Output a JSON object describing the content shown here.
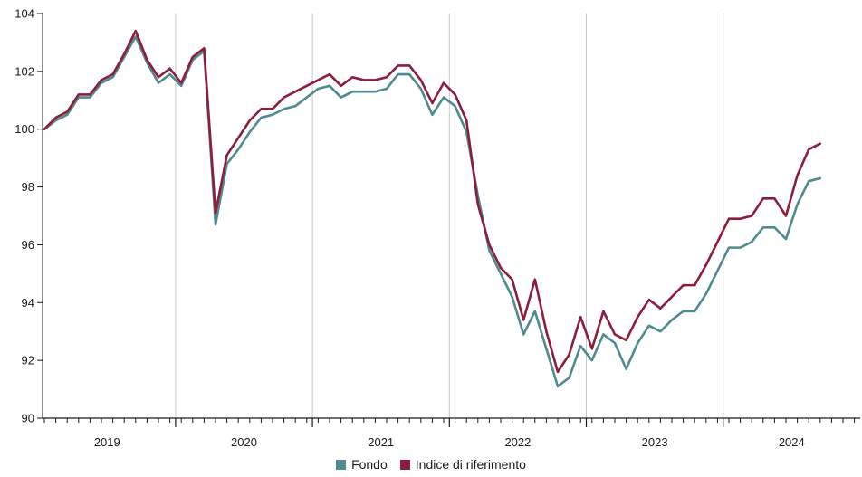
{
  "chart_data": {
    "type": "line",
    "ylim": [
      90,
      104
    ],
    "yticks": [
      90,
      92,
      94,
      96,
      98,
      100,
      102,
      104
    ],
    "xlim": [
      "2019-01",
      "2024-12"
    ],
    "x_labels": [
      "2019",
      "2020",
      "2021",
      "2022",
      "2023",
      "2024"
    ],
    "grid": "vertical at year boundaries",
    "legend_position": "bottom-center",
    "x": [
      "2019-01",
      "2019-02",
      "2019-03",
      "2019-04",
      "2019-05",
      "2019-06",
      "2019-07",
      "2019-08",
      "2019-09",
      "2019-10",
      "2019-11",
      "2019-12",
      "2020-01",
      "2020-02",
      "2020-03",
      "2020-04",
      "2020-05",
      "2020-06",
      "2020-07",
      "2020-08",
      "2020-09",
      "2020-10",
      "2020-11",
      "2020-12",
      "2021-01",
      "2021-02",
      "2021-03",
      "2021-04",
      "2021-05",
      "2021-06",
      "2021-07",
      "2021-08",
      "2021-09",
      "2021-10",
      "2021-11",
      "2021-12",
      "2022-01",
      "2022-02",
      "2022-03",
      "2022-04",
      "2022-05",
      "2022-06",
      "2022-07",
      "2022-08",
      "2022-09",
      "2022-10",
      "2022-11",
      "2022-12",
      "2023-01",
      "2023-02",
      "2023-03",
      "2023-04",
      "2023-05",
      "2023-06",
      "2023-07",
      "2023-08",
      "2023-09",
      "2023-10",
      "2023-11",
      "2023-12",
      "2024-01",
      "2024-02",
      "2024-03",
      "2024-04",
      "2024-05",
      "2024-06",
      "2024-07",
      "2024-08",
      "2024-09"
    ],
    "series": [
      {
        "name": "Fondo",
        "color": "#4f8a8f",
        "values": [
          100.0,
          100.3,
          100.5,
          101.1,
          101.1,
          101.6,
          101.8,
          102.5,
          103.2,
          102.3,
          101.6,
          101.9,
          101.5,
          102.4,
          102.7,
          96.7,
          98.8,
          99.3,
          99.9,
          100.4,
          100.5,
          100.7,
          100.8,
          101.1,
          101.4,
          101.5,
          101.1,
          101.3,
          101.3,
          101.3,
          101.4,
          101.9,
          101.9,
          101.4,
          100.5,
          101.1,
          100.8,
          99.9,
          97.7,
          95.8,
          95.0,
          94.2,
          92.9,
          93.7,
          92.4,
          91.1,
          91.4,
          92.5,
          92.0,
          92.9,
          92.6,
          91.7,
          92.6,
          93.2,
          93.0,
          93.4,
          93.7,
          93.7,
          94.3,
          95.1,
          95.9,
          95.9,
          96.1,
          96.6,
          96.6,
          96.2,
          97.4,
          98.2,
          98.3
        ]
      },
      {
        "name": "Indice di riferimento",
        "color": "#8c1d3b",
        "values": [
          100.0,
          100.4,
          100.6,
          101.2,
          101.2,
          101.7,
          101.9,
          102.6,
          103.4,
          102.4,
          101.8,
          102.1,
          101.6,
          102.5,
          102.8,
          97.1,
          99.1,
          99.7,
          100.3,
          100.7,
          100.7,
          101.1,
          101.3,
          101.5,
          101.7,
          101.9,
          101.5,
          101.8,
          101.7,
          101.7,
          101.8,
          102.2,
          102.2,
          101.7,
          100.9,
          101.6,
          101.2,
          100.3,
          97.4,
          96.0,
          95.2,
          94.8,
          93.4,
          94.8,
          93.0,
          91.6,
          92.2,
          93.5,
          92.4,
          93.7,
          92.9,
          92.7,
          93.5,
          94.1,
          93.8,
          94.2,
          94.6,
          94.6,
          95.3,
          96.1,
          96.9,
          96.9,
          97.0,
          97.6,
          97.6,
          97.0,
          98.4,
          99.3,
          99.5
        ]
      }
    ],
    "legend": [
      "Fondo",
      "Indice di riferimento"
    ]
  }
}
